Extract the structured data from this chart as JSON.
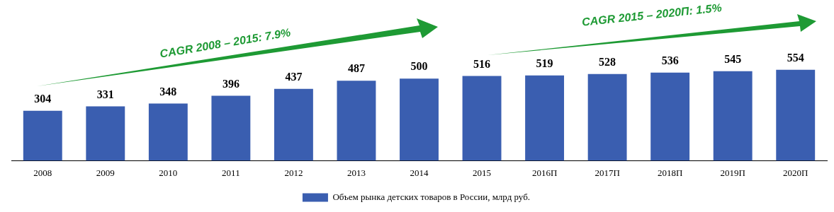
{
  "chart_data": {
    "type": "bar",
    "categories": [
      "2008",
      "2009",
      "2010",
      "2011",
      "2012",
      "2013",
      "2014",
      "2015",
      "2016П",
      "2017П",
      "2018П",
      "2019П",
      "2020П"
    ],
    "series": [
      {
        "name": "Объем рынка детских товаров в России, млрд руб.",
        "color": "#3a5eb0",
        "values": [
          304,
          331,
          348,
          396,
          437,
          487,
          500,
          516,
          519,
          528,
          536,
          545,
          554
        ]
      }
    ],
    "tick_labels": "x",
    "grid": false,
    "data_labels": true,
    "legend": "bottom",
    "annotations": [
      "CAGR 2008 – 2015: 7.9%",
      "CAGR 2015 – 2020П: 1.5%"
    ]
  }
}
